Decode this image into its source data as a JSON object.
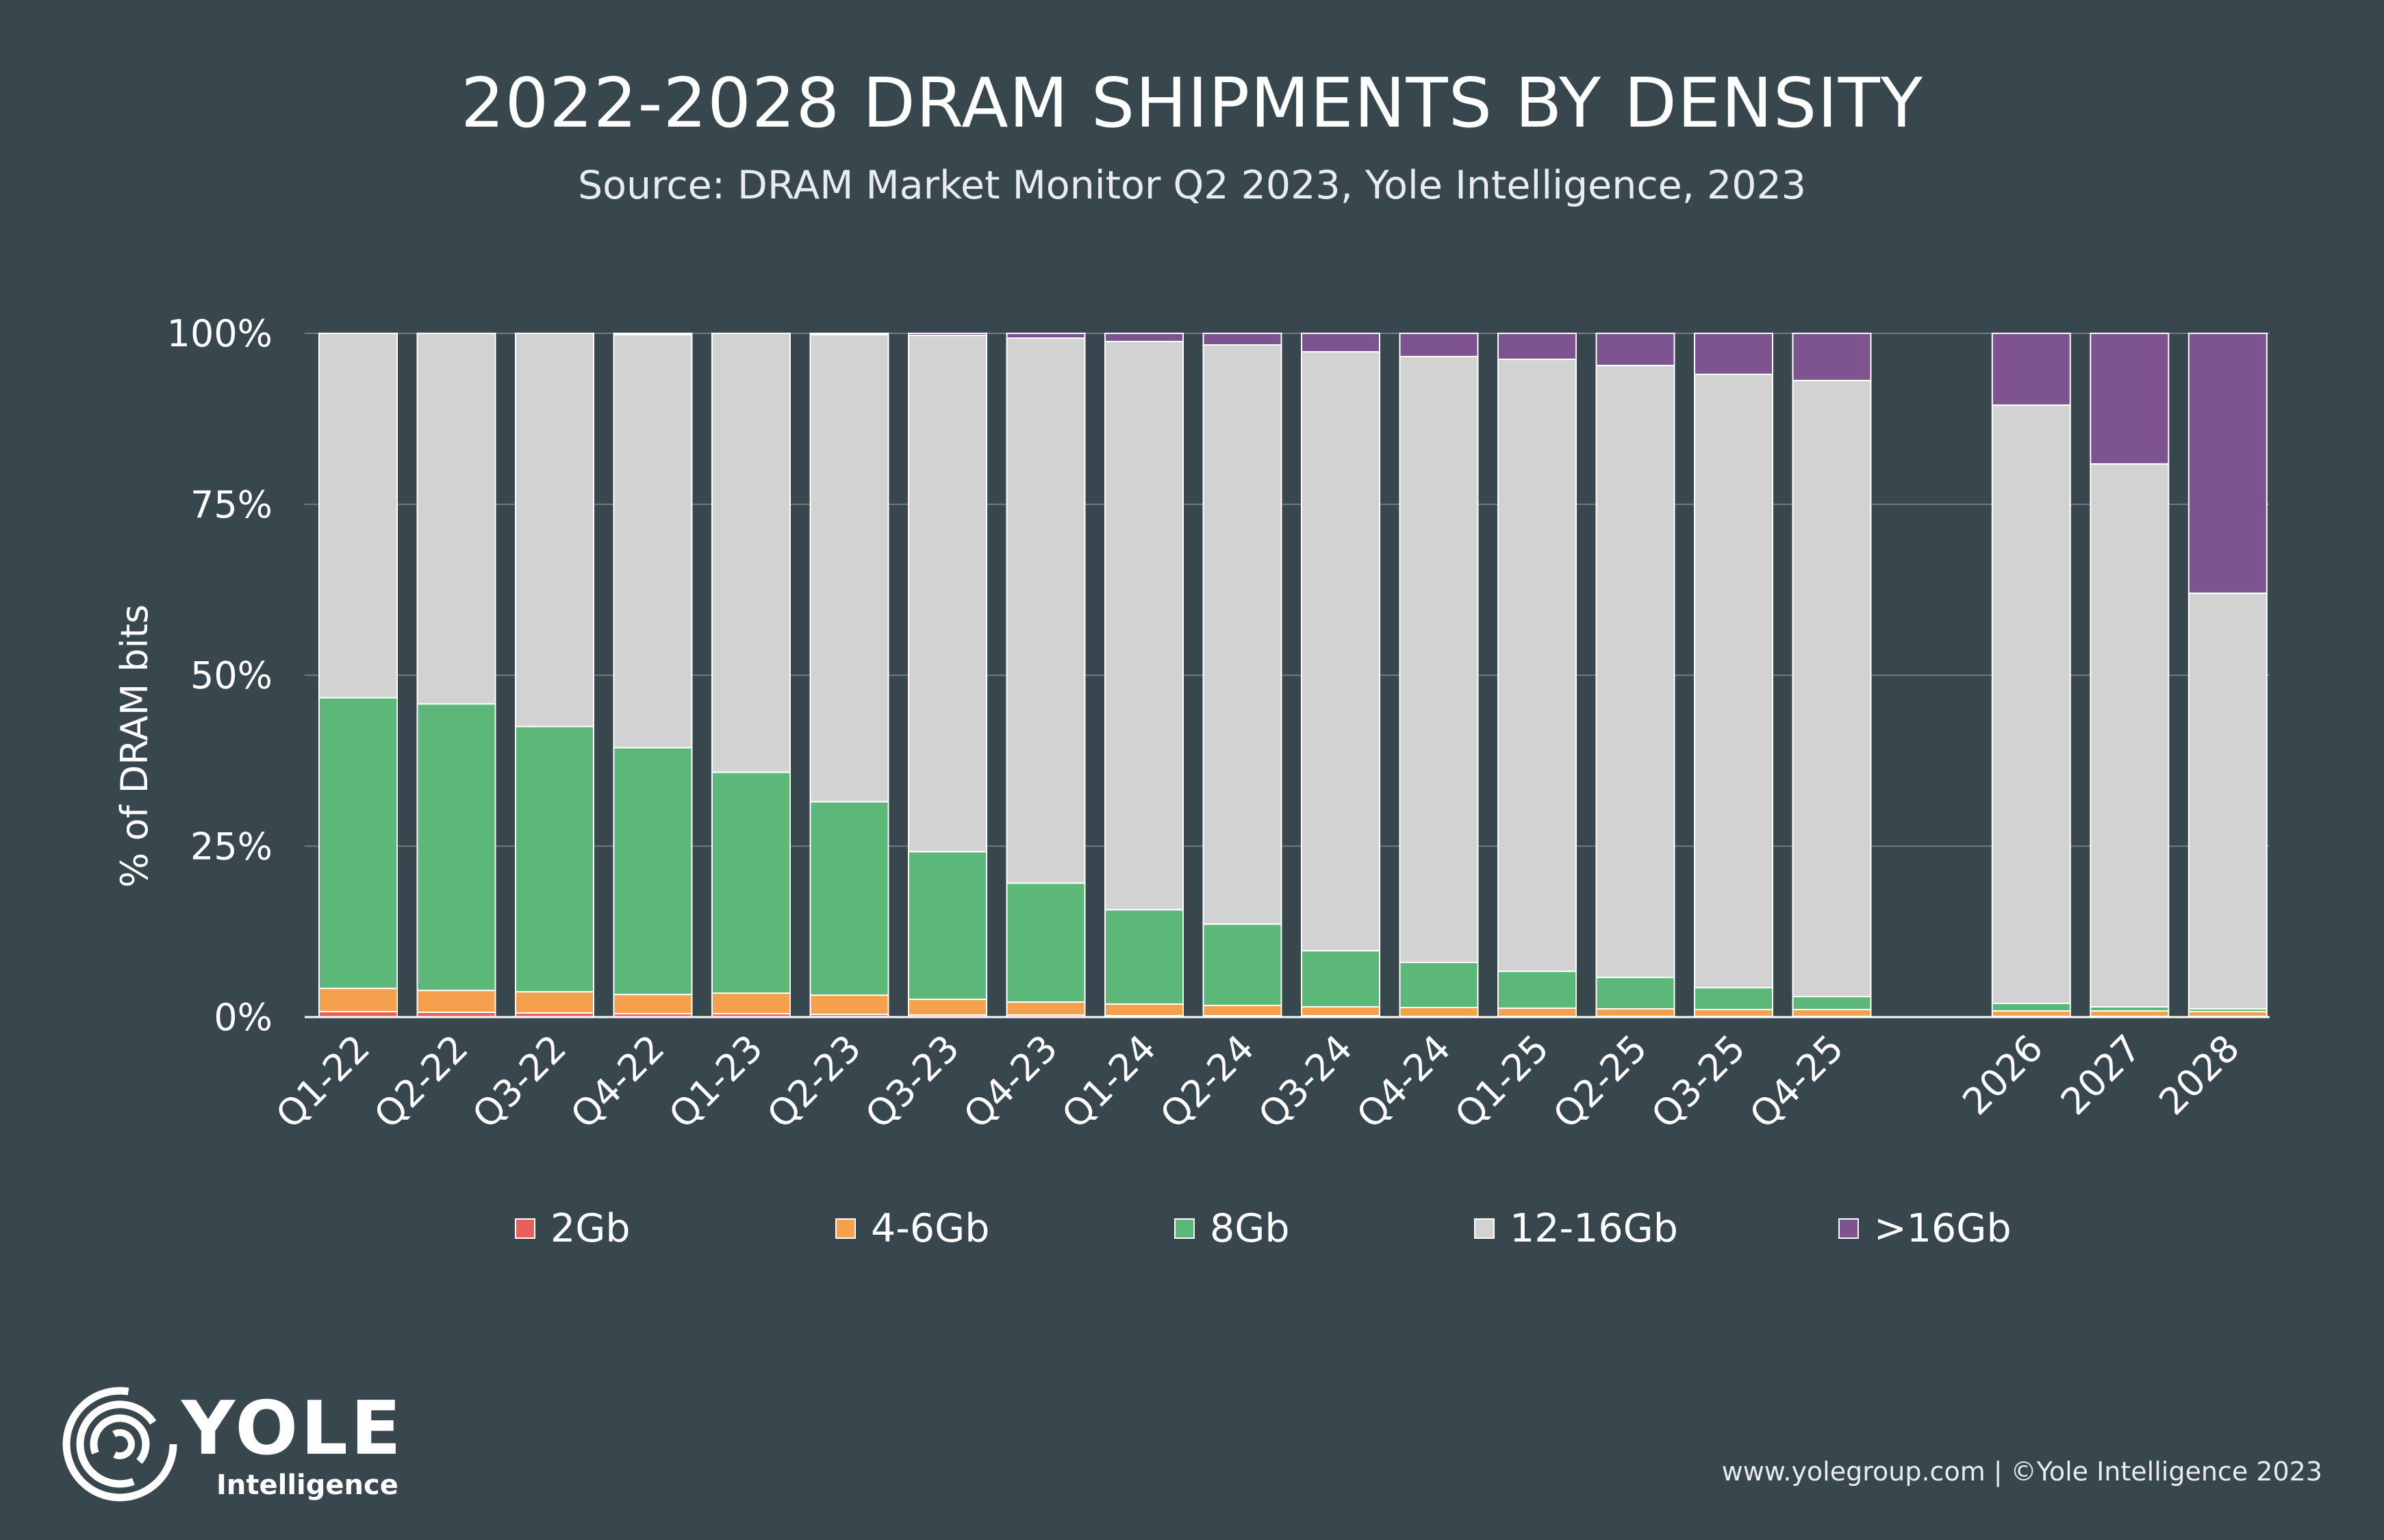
{
  "header": {
    "title": "2022-2028 DRAM SHIPMENTS BY DENSITY",
    "subtitle": "Source: DRAM Market Monitor Q2 2023, Yole Intelligence, 2023"
  },
  "chart_data": {
    "type": "bar",
    "stacked": true,
    "title": "2022-2028 DRAM SHIPMENTS BY DENSITY",
    "ylabel": "% of DRAM bits",
    "xlabel": "",
    "ylim": [
      0,
      100
    ],
    "yticks": [
      "0%",
      "25%",
      "50%",
      "75%",
      "100%"
    ],
    "grid": true,
    "legend_position": "bottom",
    "categories": [
      "Q1-22",
      "Q2-22",
      "Q3-22",
      "Q4-22",
      "Q1-23",
      "Q2-23",
      "Q3-23",
      "Q4-23",
      "Q1-24",
      "Q2-24",
      "Q3-24",
      "Q4-24",
      "Q1-25",
      "Q2-25",
      "Q3-25",
      "Q4-25",
      "2026",
      "2027",
      "2028"
    ],
    "series": [
      {
        "name": "2Gb",
        "color": "#e8605c",
        "values": [
          0.8,
          0.7,
          0.6,
          0.5,
          0.5,
          0.4,
          0.3,
          0.3,
          0.2,
          0.2,
          0.2,
          0.1,
          0.1,
          0.1,
          0.1,
          0.1,
          0.1,
          0.1,
          0.1
        ]
      },
      {
        "name": "4-6Gb",
        "color": "#f4a04c",
        "values": [
          3.4,
          3.2,
          3.1,
          2.8,
          3.0,
          2.8,
          2.3,
          1.9,
          1.7,
          1.5,
          1.3,
          1.3,
          1.2,
          1.1,
          1.0,
          1.0,
          0.8,
          0.8,
          0.7
        ]
      },
      {
        "name": "8Gb",
        "color": "#5bb878",
        "values": [
          42.5,
          41.9,
          38.8,
          36.1,
          32.3,
          28.3,
          21.6,
          17.4,
          13.8,
          11.9,
          8.2,
          6.6,
          5.4,
          4.6,
          3.2,
          1.9,
          1.1,
          0.6,
          0.4
        ]
      },
      {
        "name": "12-16Gb",
        "color": "#d2d2d2",
        "values": [
          53.3,
          54.2,
          57.5,
          60.4,
          64.2,
          68.3,
          75.5,
          79.7,
          83.1,
          84.7,
          87.6,
          88.6,
          89.5,
          89.5,
          89.7,
          90.1,
          87.5,
          79.4,
          60.8
        ]
      },
      {
        "name": ">16Gb",
        "color": "#7e5490",
        "values": [
          0.0,
          0.0,
          0.0,
          0.2,
          0.0,
          0.2,
          0.3,
          0.7,
          1.2,
          1.7,
          2.7,
          3.4,
          3.8,
          4.7,
          6.0,
          6.9,
          10.5,
          19.1,
          38.0
        ]
      }
    ]
  },
  "logo": {
    "word": "YOLE",
    "sub": "Intelligence"
  },
  "footer": {
    "text": "www.yolegroup.com | ©Yole Intelligence 2023"
  }
}
